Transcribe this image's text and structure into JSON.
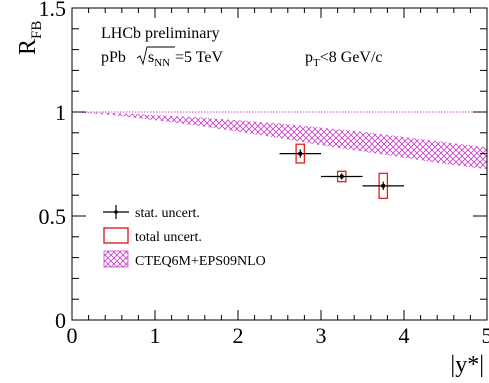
{
  "chart_data": {
    "type": "scatter",
    "texts": {
      "experiment": "LHCb preliminary",
      "system_prefix": "pPb",
      "sqrt_sub": "NN",
      "energy_suffix": "=5 TeV",
      "cut_main": "p",
      "cut_sub": "T",
      "cut_suffix": "<8 GeV/c"
    },
    "ylabel": {
      "main": "R",
      "sub": "FB"
    },
    "xlabel": "|y*|",
    "xlim": [
      0,
      5
    ],
    "ylim": [
      0,
      1.5
    ],
    "x_ticks": [
      "0",
      "1",
      "2",
      "3",
      "4",
      "5"
    ],
    "y_ticks": [
      {
        "value": 0,
        "label": "0"
      },
      {
        "value": 0.5,
        "label": "0.5"
      },
      {
        "value": 1.0,
        "label": "1"
      },
      {
        "value": 1.5,
        "label": "1.5"
      }
    ],
    "reference_line": 1.0,
    "colors": {
      "band": "#cc44cc",
      "box": "#dd2222",
      "points": "#000000",
      "axis": "#000000"
    },
    "data_points": [
      {
        "x": 2.75,
        "y": 0.8,
        "x_err": 0.25,
        "stat_err": 0.02,
        "total_err": 0.045
      },
      {
        "x": 3.25,
        "y": 0.69,
        "x_err": 0.25,
        "stat_err": 0.015,
        "total_err": 0.025
      },
      {
        "x": 3.75,
        "y": 0.645,
        "x_err": 0.25,
        "stat_err": 0.02,
        "total_err": 0.06
      }
    ],
    "band": {
      "name": "CTEQ6M+EPS09NLO",
      "x": [
        0,
        0.5,
        1.0,
        1.5,
        2.0,
        2.5,
        3.0,
        3.5,
        4.0,
        4.5,
        5.0
      ],
      "upper": [
        1.0,
        0.995,
        0.985,
        0.975,
        0.96,
        0.945,
        0.925,
        0.905,
        0.88,
        0.855,
        0.83
      ],
      "lower": [
        1.0,
        0.985,
        0.96,
        0.935,
        0.905,
        0.875,
        0.84,
        0.81,
        0.78,
        0.75,
        0.725
      ]
    },
    "legend": [
      {
        "kind": "stat",
        "label": "stat. uncert."
      },
      {
        "kind": "total",
        "label": "total uncert."
      },
      {
        "kind": "band",
        "label": "CTEQ6M+EPS09NLO"
      }
    ]
  }
}
